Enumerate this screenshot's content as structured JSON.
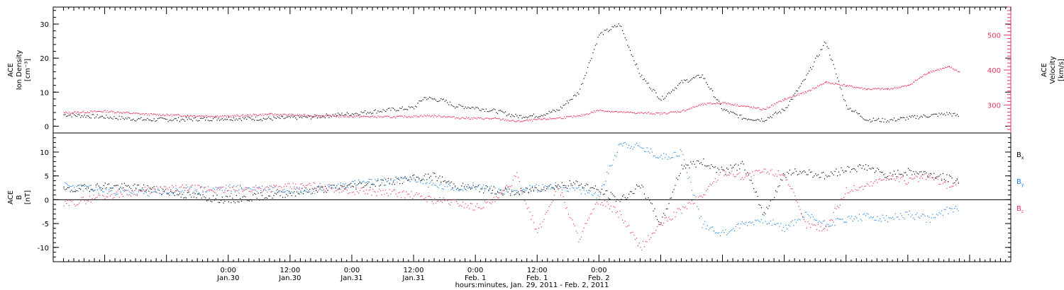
{
  "chart_data": [
    {
      "type": "scatter",
      "panel": "top",
      "ylabel_left": [
        "ACE",
        "Ion Density",
        "[cm⁻³]"
      ],
      "ylabel_right": [
        "ACE",
        "Velocity",
        "[km/s]"
      ],
      "left_axis": {
        "ylim": [
          -2,
          35
        ],
        "ticks": [
          0,
          10,
          20,
          30
        ]
      },
      "right_axis": {
        "ylim": [
          220,
          580
        ],
        "ticks": [
          300,
          400,
          500
        ]
      },
      "x": [
        -8,
        0,
        8,
        16,
        24,
        32,
        40,
        48,
        56,
        60,
        62,
        66,
        68,
        70,
        72,
        76,
        80,
        84,
        88,
        92,
        96,
        100,
        104,
        108,
        112,
        116,
        120,
        124,
        128,
        132,
        136,
        140,
        144,
        148,
        152,
        156,
        160,
        164,
        166
      ],
      "series": [
        {
          "color": "#000000",
          "axis": "left",
          "values": [
            3.5,
            2.8,
            2.0,
            2.1,
            2.4,
            2.3,
            2.8,
            3.8,
            5.0,
            5.5,
            8.5,
            7.5,
            6.0,
            5.8,
            5.5,
            4.5,
            3.0,
            3.2,
            4.8,
            10.0,
            27.0,
            30.0,
            15.0,
            8.0,
            13.0,
            15.0,
            5.0,
            2.5,
            2.0,
            5.0,
            14.0,
            25.0,
            6.0,
            2.0,
            1.8,
            2.5,
            3.2,
            3.8,
            3.0
          ]
        },
        {
          "color": "#e8365d",
          "axis": "left",
          "values": [
            4.0,
            4.5,
            3.6,
            3.2,
            3.0,
            3.6,
            3.2,
            3.0,
            2.8,
            3.0,
            3.2,
            3.0,
            2.6,
            2.5,
            2.4,
            2.3,
            1.5,
            2.0,
            2.5,
            3.0,
            4.8,
            4.2,
            4.0,
            3.8,
            4.5,
            6.5,
            7.0,
            6.0,
            5.0,
            8.0,
            10.0,
            13.0,
            12.0,
            11.0,
            11.0,
            12.0,
            16.0,
            17.5,
            16.0
          ]
        }
      ]
    },
    {
      "type": "scatter",
      "panel": "bottom",
      "ylabel": [
        "ACE",
        "B",
        "[nT]"
      ],
      "ylim": [
        -13,
        14
      ],
      "yticks": [
        -10,
        -5,
        0,
        5,
        10
      ],
      "legend": [
        "B",
        "B",
        "B"
      ],
      "legend_subscripts": [
        "x",
        "y",
        "z"
      ],
      "xlabel": "hours:minutes, Jan. 29, 2011 - Feb. 2, 2011",
      "xlim": [
        -10,
        176
      ],
      "xticks": [
        0,
        24,
        48,
        72,
        96,
        120,
        144,
        168
      ],
      "xtick_labels": [
        [
          "0:00",
          "Jan.30"
        ],
        [
          "12:00",
          "Jan.30"
        ],
        [
          "0:00",
          "Jan.31"
        ],
        [
          "12:00",
          "Jan.31"
        ],
        [
          "0:00",
          "Feb. 1"
        ],
        [
          "12:00",
          "Feb. 1"
        ],
        [
          "0:00",
          "Feb. 2"
        ]
      ],
      "xtick_label_positions": [
        -12,
        0,
        12,
        24,
        36,
        48,
        60
      ],
      "x": [
        -8,
        0,
        8,
        16,
        24,
        32,
        40,
        48,
        56,
        60,
        64,
        68,
        72,
        76,
        80,
        84,
        88,
        92,
        96,
        100,
        104,
        108,
        112,
        116,
        120,
        124,
        128,
        132,
        136,
        140,
        144,
        148,
        152,
        156,
        160,
        164,
        166
      ],
      "series": [
        {
          "name_label": "Bx",
          "color": "#000000",
          "values": [
            2.0,
            3.0,
            2.5,
            1.0,
            0.0,
            1.0,
            2.0,
            3.0,
            4.0,
            4.5,
            5.0,
            3.0,
            2.5,
            2.0,
            1.5,
            2.5,
            3.0,
            3.5,
            2.0,
            0.0,
            3.0,
            -5.0,
            7.0,
            8.0,
            6.0,
            7.5,
            -3.0,
            5.5,
            6.0,
            5.0,
            6.5,
            7.0,
            5.0,
            6.0,
            5.5,
            4.5,
            4.0
          ]
        },
        {
          "name_label": "By",
          "color": "#1f82e0",
          "values": [
            3.0,
            2.0,
            1.5,
            2.0,
            2.5,
            2.5,
            2.0,
            3.5,
            4.0,
            4.5,
            3.0,
            2.5,
            3.0,
            2.0,
            2.0,
            2.5,
            3.0,
            2.0,
            1.0,
            12.0,
            11.0,
            9.0,
            10.0,
            -5.0,
            -7.0,
            -5.0,
            -4.0,
            -6.0,
            -3.0,
            -5.0,
            -4.0,
            -3.5,
            -4.0,
            -3.0,
            -4.0,
            -2.0,
            -1.5
          ]
        },
        {
          "name_label": "Bz",
          "color": "#e8365d",
          "values": [
            -1.0,
            1.0,
            2.0,
            2.5,
            2.0,
            2.5,
            3.0,
            2.0,
            1.5,
            1.0,
            0.0,
            -0.5,
            -1.5,
            0.0,
            5.0,
            -7.0,
            3.0,
            -8.0,
            0.0,
            -3.0,
            -10.0,
            -5.0,
            -2.0,
            1.0,
            6.0,
            5.0,
            6.0,
            5.5,
            -5.0,
            -6.0,
            2.0,
            3.0,
            5.0,
            4.0,
            5.0,
            3.0,
            4.0
          ]
        }
      ]
    }
  ]
}
